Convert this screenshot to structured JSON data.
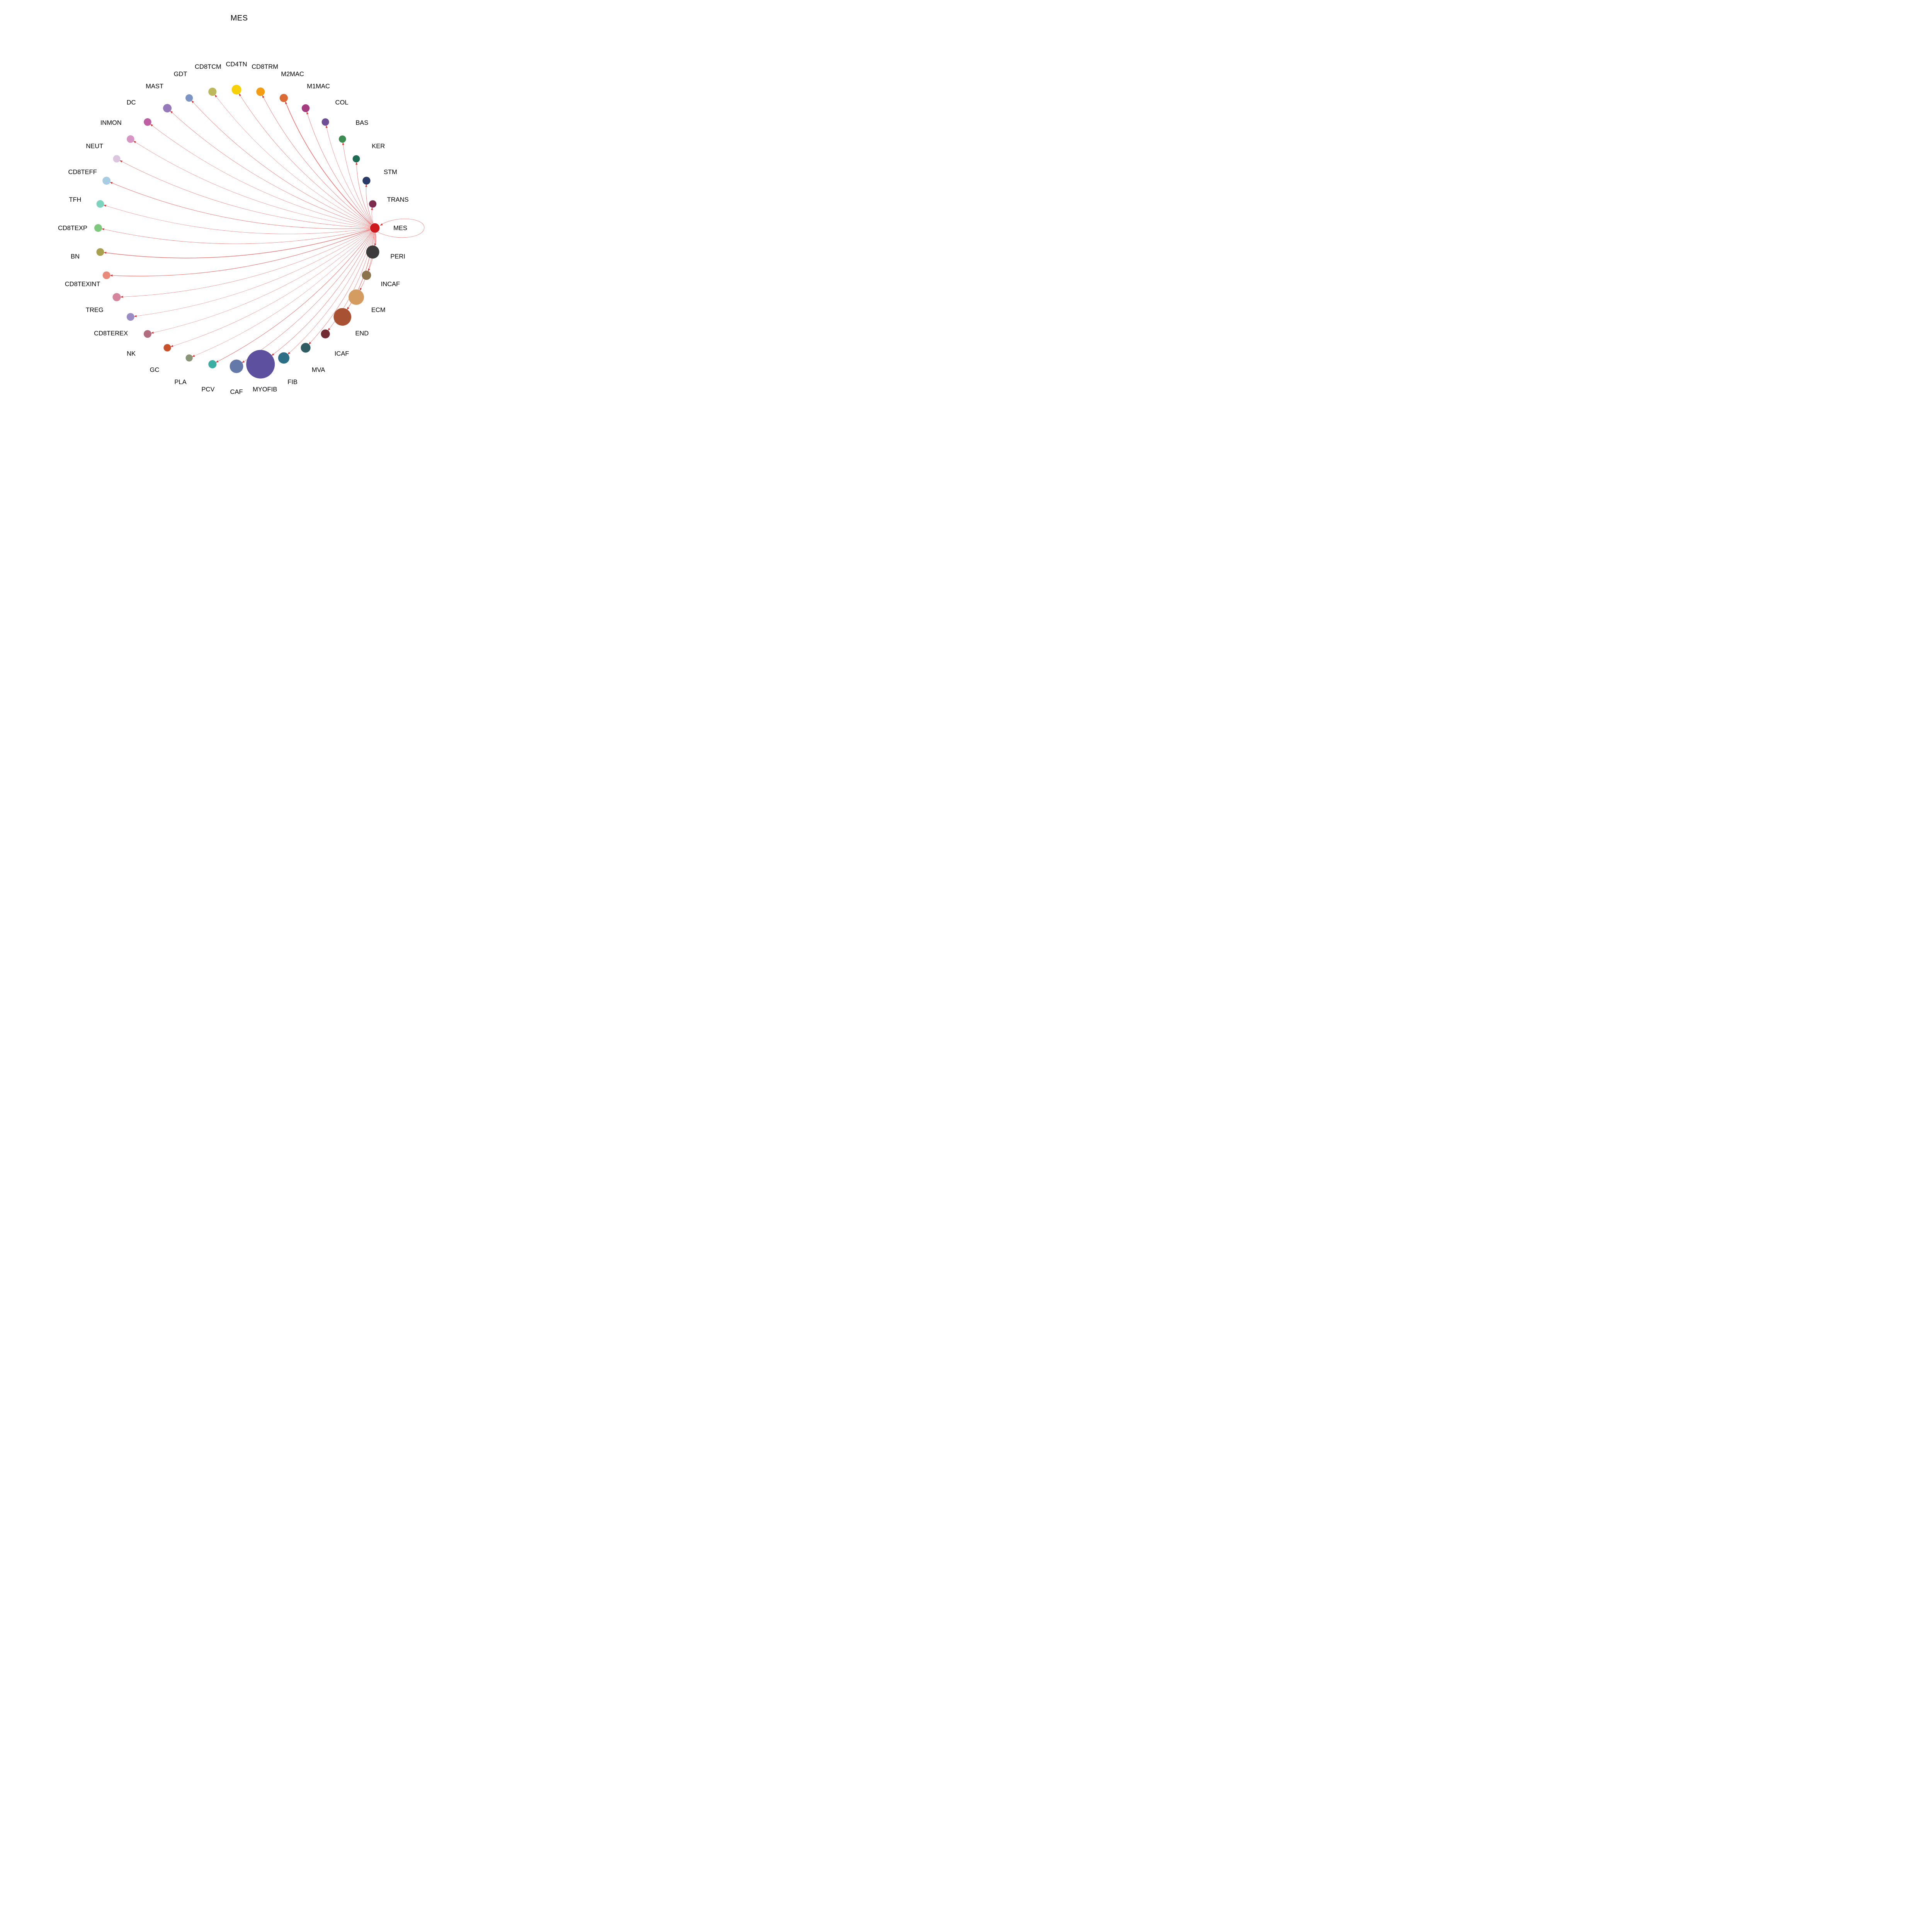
{
  "title": "MES",
  "chart_data": {
    "type": "circular-network",
    "description": "Single-source directed network: node MES sends an edge to every other node arranged on a circle, plus a self-loop on MES. Node size varies; edges are light red with red arrowheads pointing at targets.",
    "focus": "MES",
    "edge_color": "#EC6F6F",
    "arrow_color": "#D8393C",
    "legend": "none",
    "nodes": [
      {
        "label": "MES",
        "color": "#CE191D",
        "r": 12.4,
        "angle": 0,
        "edge_width": 0.8
      },
      {
        "label": "TRANS",
        "color": "#7D2C4F",
        "r": 9.6,
        "angle": 10,
        "edge_width": 0.7
      },
      {
        "label": "STM",
        "color": "#2B3A67",
        "r": 10.2,
        "angle": 20,
        "edge_width": 0.9
      },
      {
        "label": "KER",
        "color": "#1F6C55",
        "r": 9.4,
        "angle": 30,
        "edge_width": 0.9
      },
      {
        "label": "BAS",
        "color": "#3D8D53",
        "r": 9.4,
        "angle": 40,
        "edge_width": 0.8
      },
      {
        "label": "COL",
        "color": "#6F4E96",
        "r": 9.6,
        "angle": 50,
        "edge_width": 0.7
      },
      {
        "label": "M1MAC",
        "color": "#A63C80",
        "r": 10.2,
        "angle": 60,
        "edge_width": 0.9
      },
      {
        "label": "M2MAC",
        "color": "#DB6B35",
        "r": 10.6,
        "angle": 70,
        "edge_width": 1.7
      },
      {
        "label": "CD8TRM",
        "color": "#F49D13",
        "r": 11.0,
        "angle": 80,
        "edge_width": 0.9
      },
      {
        "label": "CD4TN",
        "color": "#F7D108",
        "r": 12.6,
        "angle": 90,
        "edge_width": 0.8
      },
      {
        "label": "CD8TCM",
        "color": "#BDB95A",
        "r": 10.6,
        "angle": 100,
        "edge_width": 0.6
      },
      {
        "label": "GDT",
        "color": "#7C95C4",
        "r": 9.6,
        "angle": 110,
        "edge_width": 0.8
      },
      {
        "label": "MAST",
        "color": "#9579BA",
        "r": 11.0,
        "angle": 120,
        "edge_width": 0.8
      },
      {
        "label": "DC",
        "color": "#BE5FA4",
        "r": 9.8,
        "angle": 130,
        "edge_width": 0.7
      },
      {
        "label": "INMON",
        "color": "#D795C6",
        "r": 9.8,
        "angle": 140,
        "edge_width": 0.7
      },
      {
        "label": "NEUT",
        "color": "#DCC6DD",
        "r": 9.6,
        "angle": 150,
        "edge_width": 0.8
      },
      {
        "label": "CD8TEFF",
        "color": "#A8CDE3",
        "r": 10.4,
        "angle": 160,
        "edge_width": 1.0
      },
      {
        "label": "TFH",
        "color": "#7CD3BE",
        "r": 9.8,
        "angle": 170,
        "edge_width": 0.7
      },
      {
        "label": "CD8TEXP",
        "color": "#7EC97E",
        "r": 10.0,
        "angle": 180,
        "edge_width": 0.8
      },
      {
        "label": "BN",
        "color": "#A7A14F",
        "r": 10.0,
        "angle": 190,
        "edge_width": 1.5
      },
      {
        "label": "CD8TEXINT",
        "color": "#E98A7B",
        "r": 10.0,
        "angle": 200,
        "edge_width": 1.2
      },
      {
        "label": "TREG",
        "color": "#D5869C",
        "r": 10.6,
        "angle": 210,
        "edge_width": 0.7
      },
      {
        "label": "CD8TEREX",
        "color": "#9C8CC6",
        "r": 10.0,
        "angle": 220,
        "edge_width": 0.6
      },
      {
        "label": "NK",
        "color": "#B16C80",
        "r": 10.0,
        "angle": 230,
        "edge_width": 0.6
      },
      {
        "label": "GC",
        "color": "#C8502B",
        "r": 9.6,
        "angle": 240,
        "edge_width": 0.6
      },
      {
        "label": "PLA",
        "color": "#8A9477",
        "r": 9.2,
        "angle": 250,
        "edge_width": 0.6
      },
      {
        "label": "PCV",
        "color": "#3BAEA3",
        "r": 10.6,
        "angle": 260,
        "edge_width": 1.1
      },
      {
        "label": "CAF",
        "color": "#6579A9",
        "r": 17.5,
        "angle": 270,
        "edge_width": 0.8
      },
      {
        "label": "MYOFIB",
        "color": "#5D519F",
        "r": 37.0,
        "angle": 280,
        "edge_width": 0.9
      },
      {
        "label": "FIB",
        "color": "#2B6E85",
        "r": 14.6,
        "angle": 290,
        "edge_width": 0.7
      },
      {
        "label": "MVA",
        "color": "#2F5D63",
        "r": 12.6,
        "angle": 300,
        "edge_width": 0.8
      },
      {
        "label": "ICAF",
        "color": "#702B33",
        "r": 11.6,
        "angle": 310,
        "edge_width": 0.8
      },
      {
        "label": "END",
        "color": "#A85233",
        "r": 22.8,
        "angle": 320,
        "edge_width": 1.2
      },
      {
        "label": "ECM",
        "color": "#D49C60",
        "r": 20.0,
        "angle": 330,
        "edge_width": 0.9
      },
      {
        "label": "INCAF",
        "color": "#8C734B",
        "r": 12.0,
        "angle": 340,
        "edge_width": 0.9
      },
      {
        "label": "PERI",
        "color": "#3D3A3B",
        "r": 17.0,
        "angle": 350,
        "edge_width": 1.4
      }
    ],
    "self_loop": {
      "node": "MES",
      "present": true
    }
  }
}
